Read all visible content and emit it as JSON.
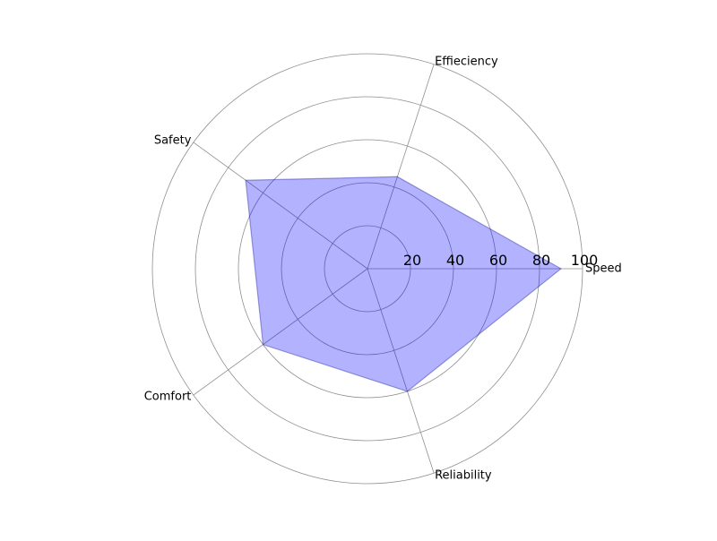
{
  "chart_data": {
    "type": "radar",
    "title": "",
    "categories": [
      "Speed",
      "Effieciency",
      "Safety",
      "Comfort",
      "Reliability"
    ],
    "series": [
      {
        "values": [
          90,
          45,
          70,
          60,
          60
        ]
      }
    ],
    "radial_ticks": [
      "20",
      "40",
      "60",
      "80",
      "100"
    ],
    "radial_tick_values": [
      20,
      40,
      60,
      80,
      100
    ],
    "rlim": [
      0,
      100
    ],
    "start_angle_deg": 0,
    "direction": "counterclockwise",
    "grid": true,
    "legend": "none",
    "colors": {
      "fill": "#0000ff",
      "edge": "#00008b",
      "grid": "#8f8f8f"
    }
  }
}
